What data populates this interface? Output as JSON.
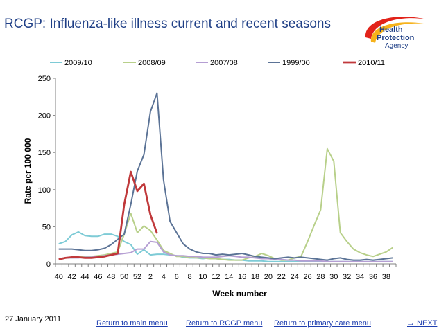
{
  "page_title": "RCGP: Influenza-like illness current and recent seasons",
  "logo": {
    "line1": "Health",
    "line2": "Protection",
    "line3": "Agency",
    "colors": {
      "swoosh_red": "#e2231a",
      "swoosh_yellow": "#f6b21b",
      "text": "#1f3f86"
    }
  },
  "date": "27 January 2011",
  "links": {
    "main_menu": "Return to main menu",
    "rcgp_menu": "Return to RCGP menu",
    "primary_care_menu": "Return to primary care menu",
    "next": "→ NEXT"
  },
  "chart_data": {
    "type": "line",
    "title": "",
    "xlabel": "Week number",
    "ylabel": "Rate per 100 000",
    "ylim": [
      0,
      250
    ],
    "yticks": [
      0,
      50,
      100,
      150,
      200,
      250
    ],
    "grid": false,
    "legend": "top",
    "x": [
      "40",
      "41",
      "42",
      "43",
      "44",
      "45",
      "46",
      "47",
      "48",
      "49",
      "50",
      "51",
      "52",
      "1",
      "2",
      "3",
      "4",
      "5",
      "6",
      "7",
      "8",
      "9",
      "10",
      "11",
      "12",
      "13",
      "14",
      "15",
      "16",
      "17",
      "18",
      "19",
      "20",
      "21",
      "22",
      "23",
      "24",
      "25",
      "26",
      "27",
      "28",
      "29",
      "30",
      "31",
      "32",
      "33",
      "34",
      "35",
      "36",
      "37",
      "38",
      "39"
    ],
    "xtick_labels": [
      "40",
      "42",
      "44",
      "46",
      "48",
      "50",
      "52",
      "2",
      "4",
      "6",
      "8",
      "10",
      "12",
      "14",
      "16",
      "18",
      "20",
      "22",
      "24",
      "26",
      "28",
      "30",
      "32",
      "34",
      "36",
      "38"
    ],
    "series": [
      {
        "name": "2009/10",
        "color": "#7ecbd6",
        "values": [
          27,
          30,
          39,
          43,
          38,
          37,
          37,
          40,
          40,
          37,
          30,
          26,
          13,
          19,
          12,
          13,
          13,
          12,
          11,
          9,
          8,
          8,
          7,
          8,
          7,
          6,
          6,
          5,
          5,
          4,
          4,
          4,
          3,
          3,
          3,
          3,
          3,
          3,
          3,
          3,
          3,
          3,
          3,
          3,
          3,
          3,
          3,
          3,
          3,
          3,
          3,
          3
        ]
      },
      {
        "name": "2008/09",
        "color": "#b8d08a",
        "values": [
          7,
          8,
          8,
          9,
          10,
          10,
          11,
          12,
          14,
          16,
          40,
          68,
          42,
          51,
          45,
          32,
          18,
          14,
          10,
          10,
          9,
          8,
          8,
          7,
          7,
          6,
          5,
          5,
          5,
          8,
          10,
          14,
          11,
          7,
          5,
          5,
          8,
          10,
          30,
          52,
          73,
          155,
          138,
          42,
          30,
          20,
          15,
          12,
          10,
          13,
          16,
          22
        ]
      },
      {
        "name": "2007/08",
        "color": "#b59ed3",
        "values": [
          7,
          8,
          8,
          8,
          9,
          9,
          10,
          11,
          12,
          13,
          14,
          15,
          20,
          20,
          30,
          29,
          16,
          12,
          11,
          11,
          10,
          10,
          9,
          9,
          9,
          10,
          11,
          10,
          9,
          9,
          8,
          7,
          7,
          6,
          6,
          5,
          5,
          4,
          4,
          4,
          4,
          3,
          3,
          3,
          3,
          3,
          3,
          3,
          3,
          3,
          3,
          3
        ]
      },
      {
        "name": "1999/00",
        "color": "#5b7396",
        "values": [
          20,
          20,
          20,
          19,
          18,
          18,
          19,
          21,
          26,
          33,
          40,
          80,
          125,
          147,
          205,
          230,
          113,
          57,
          42,
          27,
          20,
          16,
          14,
          14,
          12,
          13,
          12,
          13,
          14,
          12,
          10,
          9,
          8,
          7,
          8,
          9,
          8,
          9,
          8,
          7,
          6,
          5,
          7,
          8,
          6,
          5,
          5,
          6,
          5,
          6,
          7,
          8
        ]
      },
      {
        "name": "2010/11",
        "color": "#c0393b",
        "values": [
          6,
          8,
          9,
          9,
          8,
          8,
          9,
          10,
          12,
          14,
          80,
          124,
          98,
          108,
          66,
          41,
          null,
          null,
          null,
          null,
          null,
          null,
          null,
          null,
          null,
          null,
          null,
          null,
          null,
          null,
          null,
          null,
          null,
          null,
          null,
          null,
          null,
          null,
          null,
          null,
          null,
          null,
          null,
          null,
          null,
          null,
          null,
          null,
          null,
          null,
          null,
          null
        ]
      }
    ]
  }
}
